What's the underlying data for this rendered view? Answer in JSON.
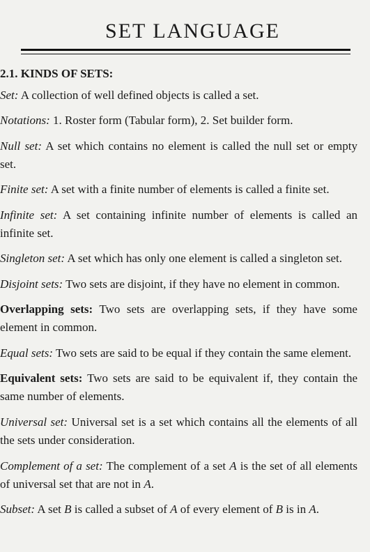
{
  "page": {
    "title": "SET LANGUAGE",
    "section_heading": "2.1. KINDS OF SETS:",
    "entries": [
      {
        "term": "Set:",
        "termStyle": "italic",
        "body": "A collection of well defined objects is called a set."
      },
      {
        "term": "Notations:",
        "termStyle": "italic",
        "body": "1. Roster form (Tabular form), 2. Set builder form."
      },
      {
        "term": "Null set:",
        "termStyle": "italic",
        "body": "A set which contains no element is called the null set or empty set."
      },
      {
        "term": "Finite set:",
        "termStyle": "italic",
        "body": "A set with a finite number of elements is called a finite set."
      },
      {
        "term": "Infinite set:",
        "termStyle": "italic",
        "body": "A set containing infinite number of elements is called an infinite set."
      },
      {
        "term": "Singleton set:",
        "termStyle": "italic",
        "body": "A set which has only one element is called a singleton set."
      },
      {
        "term": "Disjoint sets:",
        "termStyle": "italic",
        "body": "Two sets are disjoint, if they have no element in common."
      },
      {
        "term": "Overlapping sets:",
        "termStyle": "bold",
        "body": "Two sets are overlapping sets, if they have some element in common."
      },
      {
        "term": "Equal sets:",
        "termStyle": "italic",
        "body": "Two sets are said to be equal if they contain the same element."
      },
      {
        "term": "Equivalent sets:",
        "termStyle": "bold",
        "body": "Two sets are said to be equivalent if, they contain the same number of elements."
      },
      {
        "term": "Universal set:",
        "termStyle": "italic",
        "body": "Universal set is a set which contains all the elements of all the sets under consideration."
      },
      {
        "term": "Complement of a set:",
        "termStyle": "italic",
        "body_html": "The complement of a set <span class='math'>A</span> is the set of all elements of universal set that are not in <span class='math'>A</span>."
      },
      {
        "term": "Subset:",
        "termStyle": "italic",
        "body_html": "A set <span class='math'>B</span> is called a subset of <span class='math'>A</span> of every element of <span class='math'>B</span> is in <span class='math'>A</span>."
      }
    ]
  }
}
